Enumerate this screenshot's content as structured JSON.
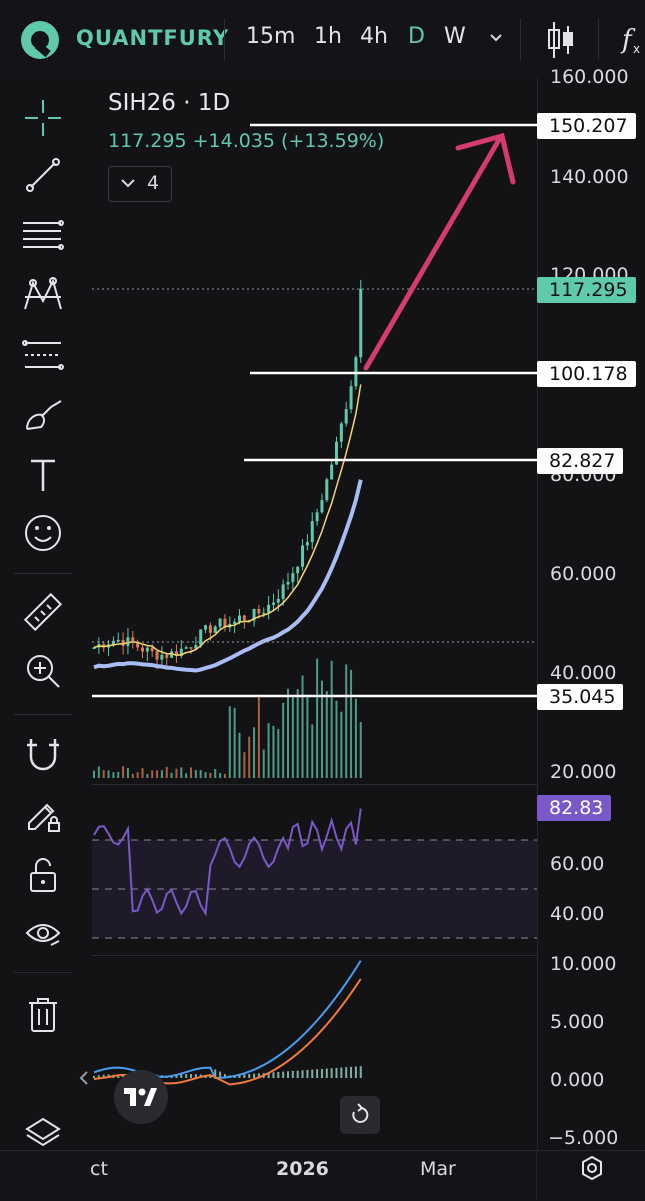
{
  "topbar": {
    "brand": "QUANTFURY",
    "timeframes": [
      "15m",
      "1h",
      "4h",
      "D",
      "W"
    ],
    "active_timeframe": "D",
    "icons": [
      "chevron-down-icon",
      "candlestick-icon",
      "indicators-fx-icon"
    ]
  },
  "legend": {
    "symbol": "SIH26 · 1D",
    "quote": "117.295 +14.035 (+13.59%)",
    "collapsed_count": "4"
  },
  "sidebar": {
    "tools": [
      "crosshair-icon",
      "trendline-icon",
      "fib-lines-icon",
      "pattern-icon",
      "projection-icon",
      "brush-icon",
      "text-icon",
      "emoji-icon",
      "ruler-icon",
      "zoom-in-icon",
      "magnet-icon",
      "lock-drawing-icon",
      "unlock-icon",
      "eye-icon",
      "trash-icon",
      "layers-icon"
    ]
  },
  "price_axis": {
    "ticks": [
      "160.000",
      "140.000",
      "120.000",
      "80.000",
      "60.000",
      "40.000",
      "20.000"
    ],
    "levels": [
      {
        "label": "150.207",
        "style": "white"
      },
      {
        "label": "117.295",
        "style": "green"
      },
      {
        "label": "100.178",
        "style": "white"
      },
      {
        "label": "82.827",
        "style": "white"
      },
      {
        "label": "35.045",
        "style": "white"
      }
    ]
  },
  "rsi_axis": {
    "current": "82.83",
    "ticks": [
      "60.00",
      "40.00"
    ]
  },
  "macd_axis": {
    "ticks": [
      "10.000",
      "5.000",
      "0.000",
      "−5.000"
    ]
  },
  "time_axis": {
    "labels": [
      "ct",
      "2026",
      "Mar"
    ]
  },
  "colors": {
    "accent": "#5fc9ac",
    "up": "#5fc9ac",
    "down": "#e07b4f",
    "ma_fast": "#f5d76e",
    "ma_slow": "#a9bdf5",
    "rsi": "#7b58c8",
    "arrow": "#d63b6e"
  },
  "chart_data": {
    "type": "candlestick",
    "symbol": "SIH26",
    "interval": "1D",
    "last": 117.295,
    "change": 14.035,
    "change_pct": 13.59,
    "levels": [
      150.207,
      100.178,
      82.827,
      35.045
    ],
    "rsi_last": 82.83
  }
}
